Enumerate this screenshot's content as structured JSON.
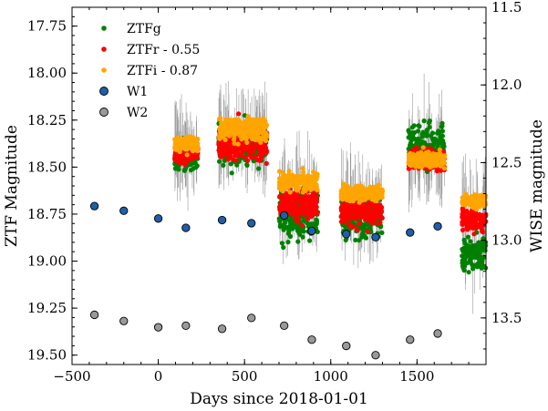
{
  "chart_data": {
    "type": "scatter",
    "xlabel": "Days since 2018-01-01",
    "ylabel_left": "ZTF Magnitude",
    "ylabel_right": "WISE magnitude",
    "xlim": [
      -500,
      1900
    ],
    "ylim_left": [
      19.55,
      17.65
    ],
    "ylim_right": [
      13.8,
      11.5
    ],
    "left_axis_inverted": true,
    "right_axis_inverted": true,
    "x_ticks": [
      -500,
      0,
      500,
      1000,
      1500
    ],
    "x_tick_labels": [
      "−500",
      "0",
      "500",
      "1000",
      "1500"
    ],
    "y_left_ticks": [
      17.75,
      18.0,
      18.25,
      18.5,
      18.75,
      19.0,
      19.25,
      19.5
    ],
    "y_left_tick_labels": [
      "17.75",
      "18.00",
      "18.25",
      "18.50",
      "18.75",
      "19.00",
      "19.25",
      "19.50"
    ],
    "y_right_ticks": [
      11.5,
      12.0,
      12.5,
      13.0,
      13.5
    ],
    "y_right_tick_labels": [
      "11.5",
      "12.0",
      "12.5",
      "13.0",
      "13.5"
    ],
    "grid": false,
    "legend_position": "top-left",
    "series": [
      {
        "name": "ZTFg",
        "axis": "left",
        "color": "#008000",
        "marker": "dot",
        "segments": [
          {
            "x_start": 95,
            "x_end": 230,
            "y_center": 18.44,
            "y_spread": 0.09
          },
          {
            "x_start": 350,
            "x_end": 630,
            "y_center": 18.38,
            "y_spread": 0.13
          },
          {
            "x_start": 700,
            "x_end": 925,
            "y_center": 18.74,
            "y_spread": 0.16
          },
          {
            "x_start": 1060,
            "x_end": 1300,
            "y_center": 18.76,
            "y_spread": 0.14
          },
          {
            "x_start": 1450,
            "x_end": 1660,
            "y_center": 18.39,
            "y_spread": 0.13
          },
          {
            "x_start": 1760,
            "x_end": 1900,
            "y_center": 18.97,
            "y_spread": 0.1
          }
        ]
      },
      {
        "name": "ZTFr - 0.55",
        "axis": "left",
        "color": "#ff0000",
        "marker": "dot",
        "segments": [
          {
            "x_start": 95,
            "x_end": 230,
            "y_center": 18.42,
            "y_spread": 0.07
          },
          {
            "x_start": 350,
            "x_end": 630,
            "y_center": 18.37,
            "y_spread": 0.12
          },
          {
            "x_start": 700,
            "x_end": 925,
            "y_center": 18.7,
            "y_spread": 0.1
          },
          {
            "x_start": 1060,
            "x_end": 1300,
            "y_center": 18.73,
            "y_spread": 0.1
          },
          {
            "x_start": 1450,
            "x_end": 1660,
            "y_center": 18.46,
            "y_spread": 0.07
          },
          {
            "x_start": 1760,
            "x_end": 1900,
            "y_center": 18.78,
            "y_spread": 0.07
          }
        ]
      },
      {
        "name": "ZTFi - 0.87",
        "axis": "left",
        "color": "#ffa500",
        "marker": "dot",
        "segments": [
          {
            "x_start": 95,
            "x_end": 230,
            "y_center": 18.38,
            "y_spread": 0.05
          },
          {
            "x_start": 350,
            "x_end": 630,
            "y_center": 18.3,
            "y_spread": 0.08
          },
          {
            "x_start": 700,
            "x_end": 925,
            "y_center": 18.58,
            "y_spread": 0.06
          },
          {
            "x_start": 1060,
            "x_end": 1300,
            "y_center": 18.64,
            "y_spread": 0.05
          },
          {
            "x_start": 1450,
            "x_end": 1660,
            "y_center": 18.46,
            "y_spread": 0.05
          },
          {
            "x_start": 1760,
            "x_end": 1900,
            "y_center": 18.68,
            "y_spread": 0.04
          }
        ]
      },
      {
        "name": "W1",
        "axis": "right",
        "color": "#1f5faa",
        "marker": "circle",
        "x": [
          -370,
          -200,
          0,
          160,
          370,
          540,
          730,
          890,
          1090,
          1260,
          1460,
          1620
        ],
        "y": [
          12.78,
          12.81,
          12.86,
          12.92,
          12.87,
          12.89,
          12.84,
          12.94,
          12.96,
          12.98,
          12.95,
          12.91
        ]
      },
      {
        "name": "W2",
        "axis": "right",
        "color": "#999999",
        "marker": "circle",
        "x": [
          -370,
          -200,
          0,
          160,
          370,
          540,
          730,
          890,
          1090,
          1260,
          1460,
          1620
        ],
        "y": [
          13.48,
          13.52,
          13.56,
          13.55,
          13.57,
          13.5,
          13.55,
          13.64,
          13.68,
          13.74,
          13.64,
          13.6
        ]
      }
    ]
  }
}
